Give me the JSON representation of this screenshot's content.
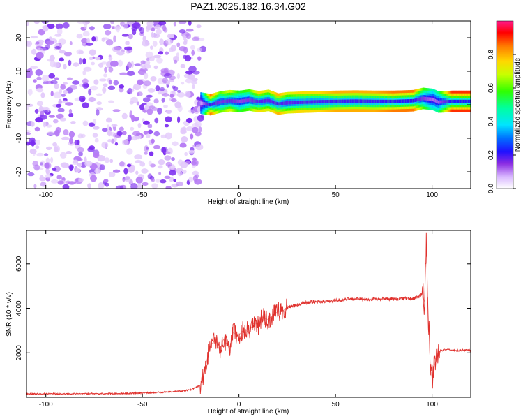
{
  "title": "PAZ1.2025.182.16.34.G02",
  "chart_data": [
    {
      "type": "heatmap",
      "xlabel": "Height of straight line (km)",
      "ylabel": "Frequency (Hz)",
      "xlim": [
        -110,
        120
      ],
      "ylim": [
        -25,
        25
      ],
      "xticks": [
        -100,
        -50,
        0,
        50,
        100
      ],
      "yticks": [
        -20,
        -10,
        0,
        10,
        20
      ],
      "noise_region_x": [
        -110,
        -20
      ],
      "signal_band": {
        "x": [
          -20,
          -15,
          -10,
          -5,
          0,
          5,
          10,
          15,
          20,
          25,
          30,
          40,
          50,
          60,
          70,
          80,
          90,
          95,
          100,
          103,
          110,
          120
        ],
        "freq": [
          0.5,
          0.0,
          0.8,
          1.2,
          1.0,
          1.4,
          0.9,
          1.3,
          0.2,
          0.6,
          0.7,
          0.9,
          1.0,
          1.1,
          1.0,
          1.0,
          1.2,
          1.9,
          1.6,
          0.8,
          1.0,
          1.0
        ],
        "amplitude": [
          0.3,
          0.85,
          0.6,
          0.7,
          0.55,
          0.6,
          0.75,
          0.7,
          0.8,
          0.7,
          0.75,
          0.75,
          0.8,
          0.8,
          0.8,
          0.85,
          0.85,
          0.6,
          0.45,
          0.5,
          0.9,
          0.9
        ]
      },
      "colorbar": {
        "label": "Normalized spectral amplitude",
        "range": [
          0,
          1
        ],
        "ticks": [
          0.0,
          0.2,
          0.4,
          0.6,
          0.8
        ]
      }
    },
    {
      "type": "line",
      "xlabel": "Height of straight line (km)",
      "ylabel": "SNR (10 * v/v)",
      "xlim": [
        -110,
        120
      ],
      "ylim": [
        0,
        7500
      ],
      "xticks": [
        -100,
        -50,
        0,
        50,
        100
      ],
      "yticks": [
        2000,
        4000,
        6000
      ],
      "color": "#e0312d",
      "series": [
        {
          "x": [
            -110,
            -100,
            -90,
            -80,
            -70,
            -60,
            -50,
            -40,
            -30,
            -25,
            -20,
            -18,
            -15,
            -12,
            -10,
            -8,
            -5,
            -3,
            0,
            3,
            5,
            8,
            10,
            12,
            15,
            18,
            20,
            23,
            25,
            28,
            30,
            35,
            40,
            45,
            50,
            55,
            60,
            65,
            70,
            75,
            80,
            85,
            90,
            93,
            95,
            96,
            97,
            98,
            99,
            100,
            102,
            104,
            108,
            112,
            116,
            120
          ],
          "y": [
            150,
            160,
            150,
            170,
            160,
            170,
            200,
            230,
            280,
            340,
            550,
            1100,
            2300,
            2600,
            2100,
            2600,
            2200,
            2900,
            2800,
            3100,
            2900,
            3400,
            3200,
            3600,
            3500,
            3700,
            3850,
            3900,
            4050,
            4100,
            4150,
            4250,
            4300,
            4300,
            4350,
            4400,
            4420,
            4400,
            4420,
            4430,
            4420,
            4440,
            4450,
            4500,
            4700,
            4300,
            6800,
            3800,
            1500,
            800,
            1800,
            2100,
            2150,
            2100,
            2120,
            2100
          ]
        }
      ]
    }
  ]
}
